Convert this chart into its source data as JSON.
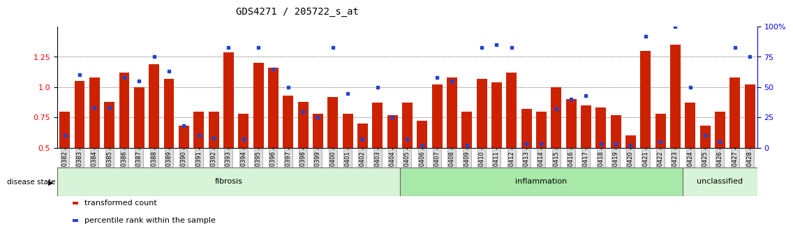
{
  "title": "GDS4271 / 205722_s_at",
  "samples": [
    "GSM380382",
    "GSM380383",
    "GSM380384",
    "GSM380385",
    "GSM380386",
    "GSM380387",
    "GSM380388",
    "GSM380389",
    "GSM380390",
    "GSM380391",
    "GSM380392",
    "GSM380393",
    "GSM380394",
    "GSM380395",
    "GSM380396",
    "GSM380397",
    "GSM380398",
    "GSM380399",
    "GSM380400",
    "GSM380401",
    "GSM380402",
    "GSM380403",
    "GSM380404",
    "GSM380405",
    "GSM380406",
    "GSM380407",
    "GSM380408",
    "GSM380409",
    "GSM380410",
    "GSM380411",
    "GSM380412",
    "GSM380413",
    "GSM380414",
    "GSM380415",
    "GSM380416",
    "GSM380417",
    "GSM380418",
    "GSM380419",
    "GSM380420",
    "GSM380421",
    "GSM380422",
    "GSM380423",
    "GSM380424",
    "GSM380425",
    "GSM380426",
    "GSM380427",
    "GSM380428"
  ],
  "bar_heights": [
    0.8,
    1.05,
    1.08,
    0.88,
    1.12,
    1.0,
    1.19,
    1.07,
    0.68,
    0.8,
    0.8,
    1.29,
    0.78,
    1.2,
    1.16,
    0.93,
    0.88,
    0.78,
    0.92,
    0.78,
    0.7,
    0.87,
    0.77,
    0.87,
    0.72,
    1.02,
    1.08,
    0.8,
    1.07,
    1.04,
    1.12,
    0.82,
    0.8,
    1.0,
    0.9,
    0.85,
    0.83,
    0.77,
    0.6,
    1.3,
    0.78,
    1.35,
    0.87,
    0.68,
    0.8,
    1.08,
    1.02
  ],
  "percentile_rank_pct": [
    10,
    60,
    33,
    33,
    58,
    55,
    75,
    63,
    18,
    10,
    8,
    83,
    7,
    83,
    65,
    50,
    30,
    25,
    83,
    45,
    7,
    50,
    25,
    7,
    2,
    58,
    55,
    2,
    83,
    85,
    83,
    3,
    3,
    32,
    40,
    43,
    3,
    3,
    2,
    92,
    5,
    100,
    50,
    10,
    5,
    83,
    75
  ],
  "groups": [
    {
      "label": "fibrosis",
      "start": 0,
      "end": 23,
      "color": "#d8f4d8"
    },
    {
      "label": "inflammation",
      "start": 23,
      "end": 42,
      "color": "#a8e8a8"
    },
    {
      "label": "unclassified",
      "start": 42,
      "end": 47,
      "color": "#d8f4d8"
    }
  ],
  "ylim_left": [
    0.5,
    1.5
  ],
  "ylim_right": [
    0,
    100
  ],
  "yticks_left": [
    0.5,
    0.75,
    1.0,
    1.25
  ],
  "yticks_right": [
    0,
    25,
    50,
    75,
    100
  ],
  "bar_color": "#cc2200",
  "dot_color": "#2244cc",
  "title_fontsize": 10,
  "tick_fontsize": 6,
  "legend_fontsize": 8
}
